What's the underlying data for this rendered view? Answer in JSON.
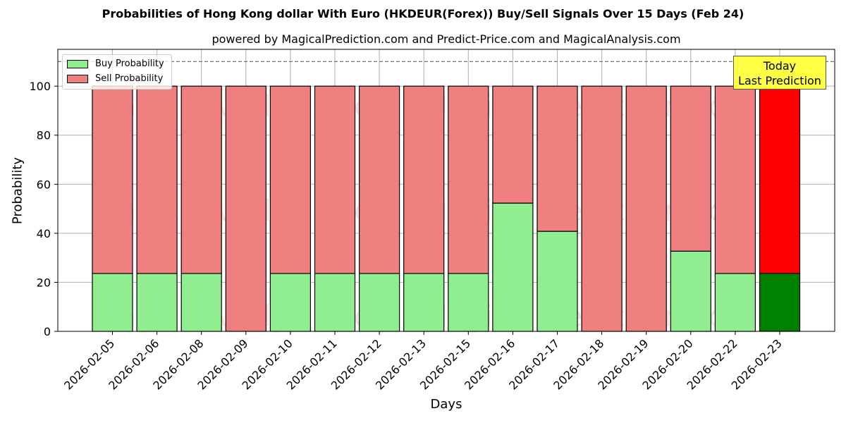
{
  "title": "Probabilities of Hong Kong dollar With Euro (HKDEUR(Forex)) Buy/Sell Signals Over 15 Days (Feb 24)",
  "subtitle": "powered by MagicalPrediction.com and Predict-Price.com and MagicalAnalysis.com",
  "legend": {
    "buy": "Buy Probability",
    "sell": "Sell Probability"
  },
  "annotation": {
    "line1": "Today",
    "line2": "Last Prediction"
  },
  "watermarks": [
    "MagicalAnalysis.com",
    "MagicalPrediction.com"
  ],
  "colors": {
    "buy": "#90ee90",
    "sell": "#f08080",
    "today_buy": "#008000",
    "today_sell": "#ff0000",
    "annotation_bg": "#ffff44"
  },
  "chart_data": {
    "type": "bar",
    "stacked": true,
    "title": "Probabilities of Hong Kong dollar With Euro (HKDEUR(Forex)) Buy/Sell Signals Over 15 Days (Feb 24)",
    "xlabel": "Days",
    "ylabel": "Probability",
    "ylim": [
      0,
      115
    ],
    "yticks": [
      0,
      20,
      40,
      60,
      80,
      100
    ],
    "grid": true,
    "legend_position": "upper left",
    "reference_line": 110,
    "categories": [
      "2026-02-05",
      "2026-02-06",
      "2026-02-08",
      "2026-02-09",
      "2026-02-10",
      "2026-02-11",
      "2026-02-12",
      "2026-02-13",
      "2026-02-15",
      "2026-02-16",
      "2026-02-17",
      "2026-02-18",
      "2026-02-19",
      "2026-02-20",
      "2026-02-22",
      "2026-02-23"
    ],
    "series": [
      {
        "name": "Buy Probability",
        "values": [
          23.6,
          23.6,
          23.6,
          0,
          23.6,
          23.6,
          23.6,
          23.6,
          23.6,
          52.3,
          40.8,
          0,
          0,
          32.7,
          23.6,
          23.6
        ]
      },
      {
        "name": "Sell Probability",
        "values": [
          76.4,
          76.4,
          76.4,
          100,
          76.4,
          76.4,
          76.4,
          76.4,
          76.4,
          47.7,
          59.2,
          100,
          100,
          67.3,
          76.4,
          76.4
        ]
      }
    ]
  },
  "axis": {
    "ylabel": "Probability",
    "xlabel": "Days"
  }
}
